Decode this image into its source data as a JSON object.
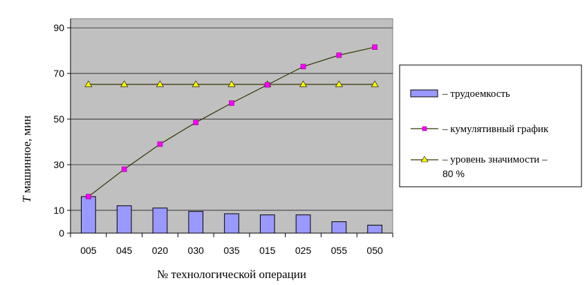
{
  "chart_data": {
    "type": "bar+line",
    "categories": [
      "005",
      "045",
      "020",
      "030",
      "035",
      "015",
      "025",
      "055",
      "050"
    ],
    "series": [
      {
        "name": "– трудоемкость",
        "type": "bar",
        "values": [
          16,
          12,
          11,
          9.5,
          8.5,
          8,
          8,
          5,
          3.5
        ]
      },
      {
        "name": "– кумулятивный график",
        "type": "line",
        "marker": "square",
        "values": [
          16,
          28,
          39,
          48.5,
          57,
          65,
          73,
          78,
          81.5
        ]
      },
      {
        "name": "– уровень значимости –",
        "name_cont": "80 %",
        "type": "line",
        "marker": "triangle",
        "values": [
          65.2,
          65.2,
          65.2,
          65.2,
          65.2,
          65.2,
          65.2,
          65.2,
          65.2
        ]
      }
    ],
    "yticks": [
      0,
      10,
      30,
      50,
      70,
      90
    ],
    "ylim": [
      0,
      94
    ],
    "xlabel": "№ технологической операции",
    "ylabel_italic": "T",
    "ylabel_rest": " машинное, мин",
    "grid": true,
    "legend": "right",
    "colors": {
      "plot_bg": "#c0c0c0",
      "bar_fill": "#9999ff",
      "bar_stroke": "#000000",
      "cum_line": "#333300",
      "cum_marker": "#ff00ff",
      "level_line": "#333300",
      "level_marker": "#ffff00"
    }
  }
}
